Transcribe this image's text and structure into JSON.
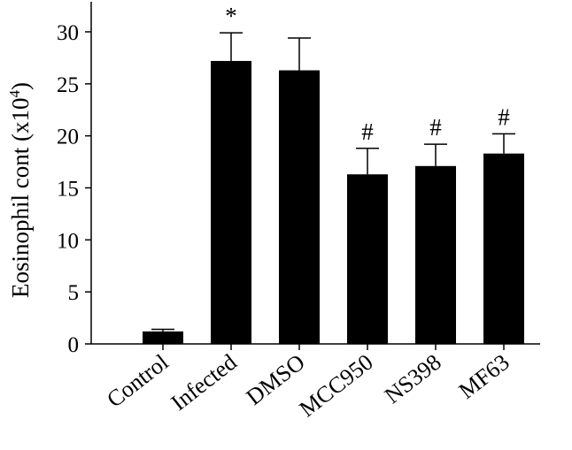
{
  "chart_data": {
    "type": "bar",
    "categories": [
      "Control",
      "Infected",
      "DMSO",
      "MCC950",
      "NS398",
      "MF63"
    ],
    "values": [
      1.2,
      27.2,
      26.3,
      16.3,
      17.1,
      18.3
    ],
    "errors": [
      0.2,
      2.7,
      3.1,
      2.5,
      2.1,
      1.9
    ],
    "annotations": [
      "",
      "*",
      "",
      "#",
      "#",
      "#"
    ],
    "title": "",
    "xlabel": "",
    "ylabel": "Eosinophil cont (x10",
    "ylabel_superscript": "4",
    "ylabel_suffix": ")",
    "ylim": [
      0,
      30
    ],
    "yticks": [
      0,
      5,
      10,
      15,
      20,
      25,
      30
    ],
    "grid": false,
    "bar_color": "#000000"
  }
}
